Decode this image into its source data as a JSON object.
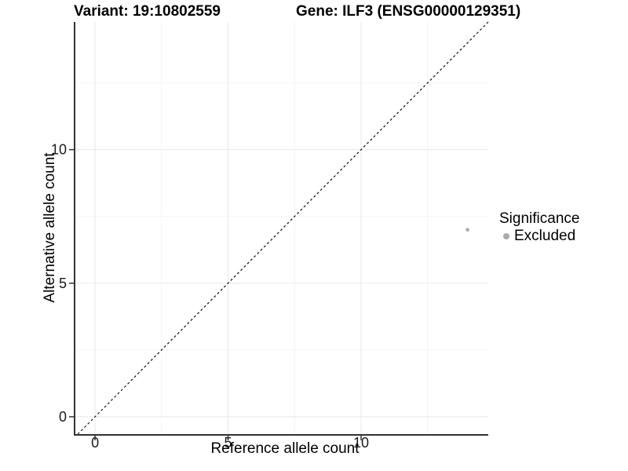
{
  "chart_data": {
    "type": "scatter",
    "titles": {
      "left": "Variant: 19:10802559",
      "right": "Gene: ILF3 (ENSG00000129351)"
    },
    "xlabel": "Reference allele count",
    "ylabel": "Alternative allele count",
    "xlim": [
      -0.74,
      14.78
    ],
    "ylim": [
      -0.65,
      14.78
    ],
    "x_ticks": [
      0,
      5,
      10
    ],
    "y_ticks": [
      0,
      5,
      10
    ],
    "grid_major": [
      0,
      5,
      10
    ],
    "grid_minor": [
      2.5,
      7.5,
      12.5
    ],
    "grid": true,
    "reference_line": {
      "equation": "y = x",
      "style": "dashed",
      "color": "#111111"
    },
    "series": [
      {
        "name": "Excluded",
        "color": "#aaaaaa",
        "points": [
          {
            "x": 14,
            "y": 7
          }
        ]
      }
    ],
    "legend": {
      "title": "Significance",
      "position": "right",
      "items": [
        {
          "label": "Excluded",
          "color": "#aaaaaa"
        }
      ]
    },
    "colors": {
      "axis": "#333333",
      "grid_major": "#e8e8e8",
      "grid_minor": "#f4f4f4",
      "tick_text": "#1a1a1a",
      "background": "#ffffff"
    }
  }
}
